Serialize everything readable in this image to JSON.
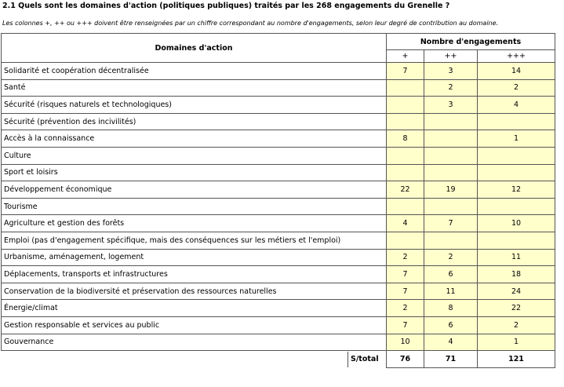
{
  "header": {
    "title": "2.1 Quels sont les domaines d'action (politiques publiques) traités par les 268 engagements du Grenelle ?",
    "note": "Les colonnes +, ++ ou +++ doivent être renseignées par un chiffre correspondant au nombre d'engagements, selon leur degré de contribution au domaine."
  },
  "table": {
    "domain_header": "Domaines d'action",
    "group_header": "Nombre d'engagements",
    "subcolumns": [
      "+",
      "++",
      "+++"
    ],
    "rows": [
      {
        "label": "Solidarité et coopération décentralisée",
        "values": [
          7,
          3,
          14
        ]
      },
      {
        "label": "Santé",
        "values": [
          null,
          2,
          2
        ]
      },
      {
        "label": "Sécurité (risques naturels et technologiques)",
        "values": [
          null,
          3,
          4
        ]
      },
      {
        "label": "Sécurité (prévention des incivilités)",
        "values": [
          null,
          null,
          null
        ]
      },
      {
        "label": "Accès à la connaissance",
        "values": [
          8,
          null,
          1
        ]
      },
      {
        "label": "Culture",
        "values": [
          null,
          null,
          null
        ]
      },
      {
        "label": "Sport et loisirs",
        "values": [
          null,
          null,
          null
        ]
      },
      {
        "label": "Développement économique",
        "values": [
          22,
          19,
          12
        ]
      },
      {
        "label": "Tourisme",
        "values": [
          null,
          null,
          null
        ]
      },
      {
        "label": "Agriculture et gestion des forêts",
        "values": [
          4,
          7,
          10
        ]
      },
      {
        "label": "Emploi (pas d'engagement spécifique, mais des conséquences sur les métiers et l'emploi)",
        "values": [
          null,
          null,
          null
        ]
      },
      {
        "label": "Urbanisme, aménagement, logement",
        "values": [
          2,
          2,
          11
        ]
      },
      {
        "label": "Déplacements, transports et infrastructures",
        "values": [
          7,
          6,
          18
        ]
      },
      {
        "label": "Conservation de la biodiversité et préservation des ressources naturelles",
        "values": [
          7,
          11,
          24
        ]
      },
      {
        "label": "Énergie/climat",
        "values": [
          2,
          8,
          22
        ]
      },
      {
        "label": "Gestion responsable et services au public",
        "values": [
          7,
          6,
          2
        ]
      },
      {
        "label": "Gouvernance",
        "values": [
          10,
          4,
          1
        ]
      }
    ],
    "total": {
      "label": "S/total",
      "values": [
        76,
        71,
        121
      ]
    }
  }
}
